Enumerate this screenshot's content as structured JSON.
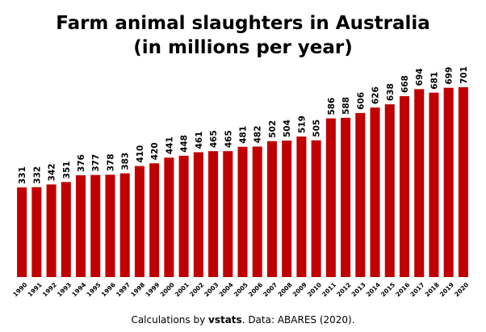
{
  "title_line1": "Farm animal slaughters in Australia",
  "title_line2": "(in millions per year)",
  "caption_prefix": "Calculations by ",
  "caption_brand": "vstats",
  "caption_suffix": ". Data: ABARES (2020).",
  "bar_color": "#c00000",
  "chart_data": {
    "type": "bar",
    "title": "Farm animal slaughters in Australia (in millions per year)",
    "xlabel": "",
    "ylabel": "",
    "categories": [
      "1990",
      "1991",
      "1992",
      "1993",
      "1994",
      "1995",
      "1996",
      "1997",
      "1998",
      "1999",
      "2000",
      "2001",
      "2002",
      "2003",
      "2004",
      "2005",
      "2006",
      "2007",
      "2008",
      "2009",
      "2010",
      "2011",
      "2012",
      "2013",
      "2014",
      "2015",
      "2016",
      "2017",
      "2018",
      "2019",
      "2020"
    ],
    "values": [
      331,
      332,
      342,
      351,
      376,
      377,
      378,
      383,
      410,
      420,
      441,
      448,
      461,
      465,
      465,
      481,
      482,
      502,
      504,
      519,
      505,
      586,
      588,
      606,
      626,
      638,
      668,
      694,
      681,
      699,
      701
    ],
    "ylim": [
      0,
      701
    ],
    "grid": false,
    "data_labels": true,
    "legend": "none"
  }
}
